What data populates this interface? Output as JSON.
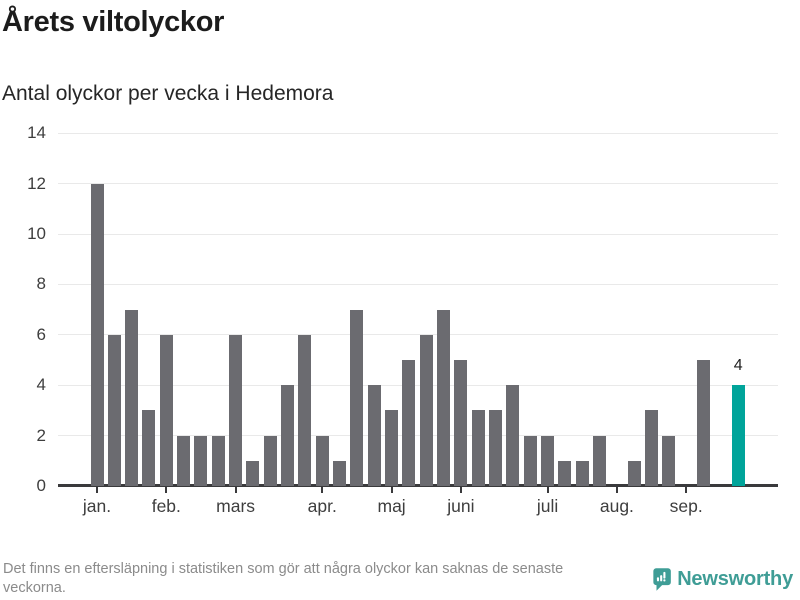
{
  "chart_data": {
    "type": "bar",
    "title": "Årets viltolyckor",
    "subtitle": "Antal olyckor per vecka i Hedemora",
    "xlabel": "",
    "ylabel": "",
    "x_unit": "vecka",
    "values": [
      12,
      6,
      7,
      3,
      6,
      2,
      2,
      2,
      6,
      1,
      2,
      4,
      6,
      2,
      1,
      7,
      4,
      3,
      5,
      6,
      7,
      5,
      3,
      3,
      4,
      2,
      2,
      1,
      1,
      2,
      0,
      1,
      3,
      2,
      0,
      5,
      0,
      4
    ],
    "month_ticks": [
      {
        "label": "jan.",
        "week": 1
      },
      {
        "label": "feb.",
        "week": 5
      },
      {
        "label": "mars",
        "week": 9
      },
      {
        "label": "apr.",
        "week": 14
      },
      {
        "label": "maj",
        "week": 18
      },
      {
        "label": "juni",
        "week": 22
      },
      {
        "label": "juli",
        "week": 27
      },
      {
        "label": "aug.",
        "week": 31
      },
      {
        "label": "sep.",
        "week": 35
      }
    ],
    "yticks": [
      0,
      2,
      4,
      6,
      8,
      10,
      12,
      14
    ],
    "ylim": [
      0,
      14
    ],
    "grid": true,
    "legend": false,
    "highlight_last_bar": true,
    "last_bar_label": "4",
    "colors": {
      "bar": "#6b6b70",
      "highlight": "#00a49a"
    }
  },
  "footer": {
    "note": "Det finns en eftersläpning i statistiken som gör att några olyckor kan saknas de senaste veckorna.",
    "brand": "Newsworthy",
    "brand_color": "#3f9d96"
  }
}
